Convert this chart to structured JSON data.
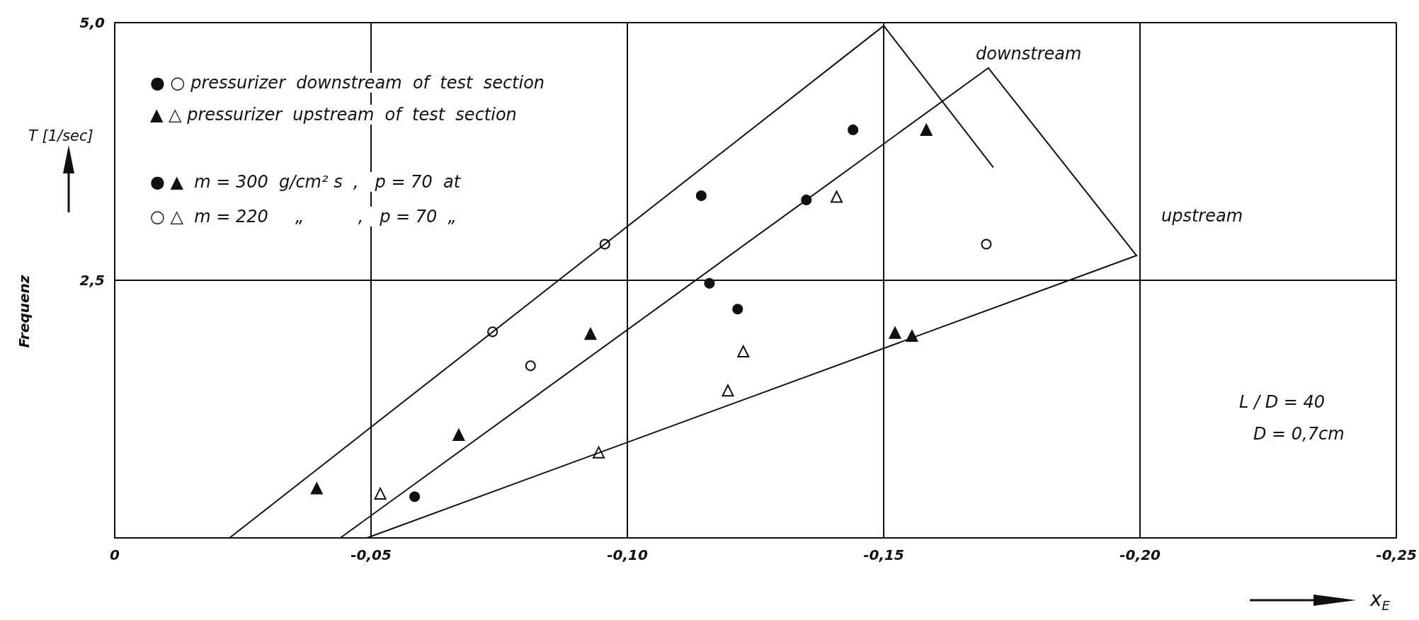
{
  "chart_data": {
    "type": "scatter",
    "ylabel": "Frequenz",
    "xlabel": "x$_{E}$",
    "xlim": [
      0,
      -0.25
    ],
    "xticks": [
      {
        "value": 0,
        "label": "0"
      },
      {
        "value": -0.05,
        "label": "-0,05"
      },
      {
        "value": -0.1,
        "label": "-0,10"
      },
      {
        "value": -0.15,
        "label": "-0,15"
      },
      {
        "value": -0.2,
        "label": "-0,20"
      },
      {
        "value": -0.25,
        "label": "-0,25"
      }
    ],
    "ylim": [
      0,
      5
    ],
    "yticks": [
      {
        "value": 2.5,
        "label": "2,5"
      },
      {
        "value": 5,
        "label": "5,0"
      }
    ],
    "grid": true,
    "series": [
      {
        "marker": "circle",
        "color": "#111111",
        "x": [
          -0.0585,
          -0.1144,
          -0.1349,
          -0.144,
          -0.116,
          -0.1215
        ],
        "values": [
          0.4,
          3.32,
          3.28,
          3.96,
          2.47,
          2.22
        ]
      },
      {
        "marker": "circle",
        "color": "#ffffff",
        "x": [
          -0.0956,
          -0.0737,
          -0.0811,
          -0.17
        ],
        "values": [
          2.85,
          2.0,
          1.67,
          2.85
        ]
      },
      {
        "marker": "triangle",
        "color": "#111111",
        "x": [
          -0.0394,
          -0.0671,
          -0.0928,
          -0.1583,
          -0.1522,
          -0.1555
        ],
        "values": [
          0.48,
          1.0,
          1.98,
          3.96,
          1.99,
          1.96
        ]
      },
      {
        "marker": "triangle",
        "color": "#ffffff",
        "x": [
          -0.0518,
          -0.0944,
          -0.1196,
          -0.1226,
          -0.1408
        ],
        "values": [
          0.43,
          0.83,
          1.43,
          1.81,
          3.31
        ]
      },
      {
        "type": "line",
        "marker": "none",
        "color": "#111111",
        "x": [
          -0.0224,
          -0.15
        ],
        "values": [
          0,
          4.97
        ]
      },
      {
        "type": "line",
        "marker": "none",
        "color": "#111111",
        "x": [
          -0.044,
          -0.1704
        ],
        "values": [
          0,
          4.56
        ]
      },
      {
        "type": "line",
        "marker": "none",
        "color": "#111111",
        "x": [
          -0.0492,
          -0.1993
        ],
        "values": [
          0,
          2.74
        ]
      },
      {
        "type": "line",
        "marker": "none",
        "color": "#111111",
        "x": [
          -0.15,
          -0.1713
        ],
        "values": [
          4.97,
          3.6
        ]
      },
      {
        "type": "line",
        "marker": "none",
        "color": "#111111",
        "x": [
          -0.1704,
          -0.1993
        ],
        "values": [
          4.56,
          2.74
        ]
      }
    ],
    "annotations": [
      "● ○ pressurizer  downstream  of  test  section",
      "▲ △ pressurizer  upstream  of  test  section",
      "● ▲  m = 300  g/cm² s  ,   p = 70  at",
      "○ △  m = 220     „          ,   p = 70  „",
      "T [1/sec]",
      "L / D = 40",
      "D = 0,7cm",
      "downstream",
      "upstream"
    ]
  }
}
